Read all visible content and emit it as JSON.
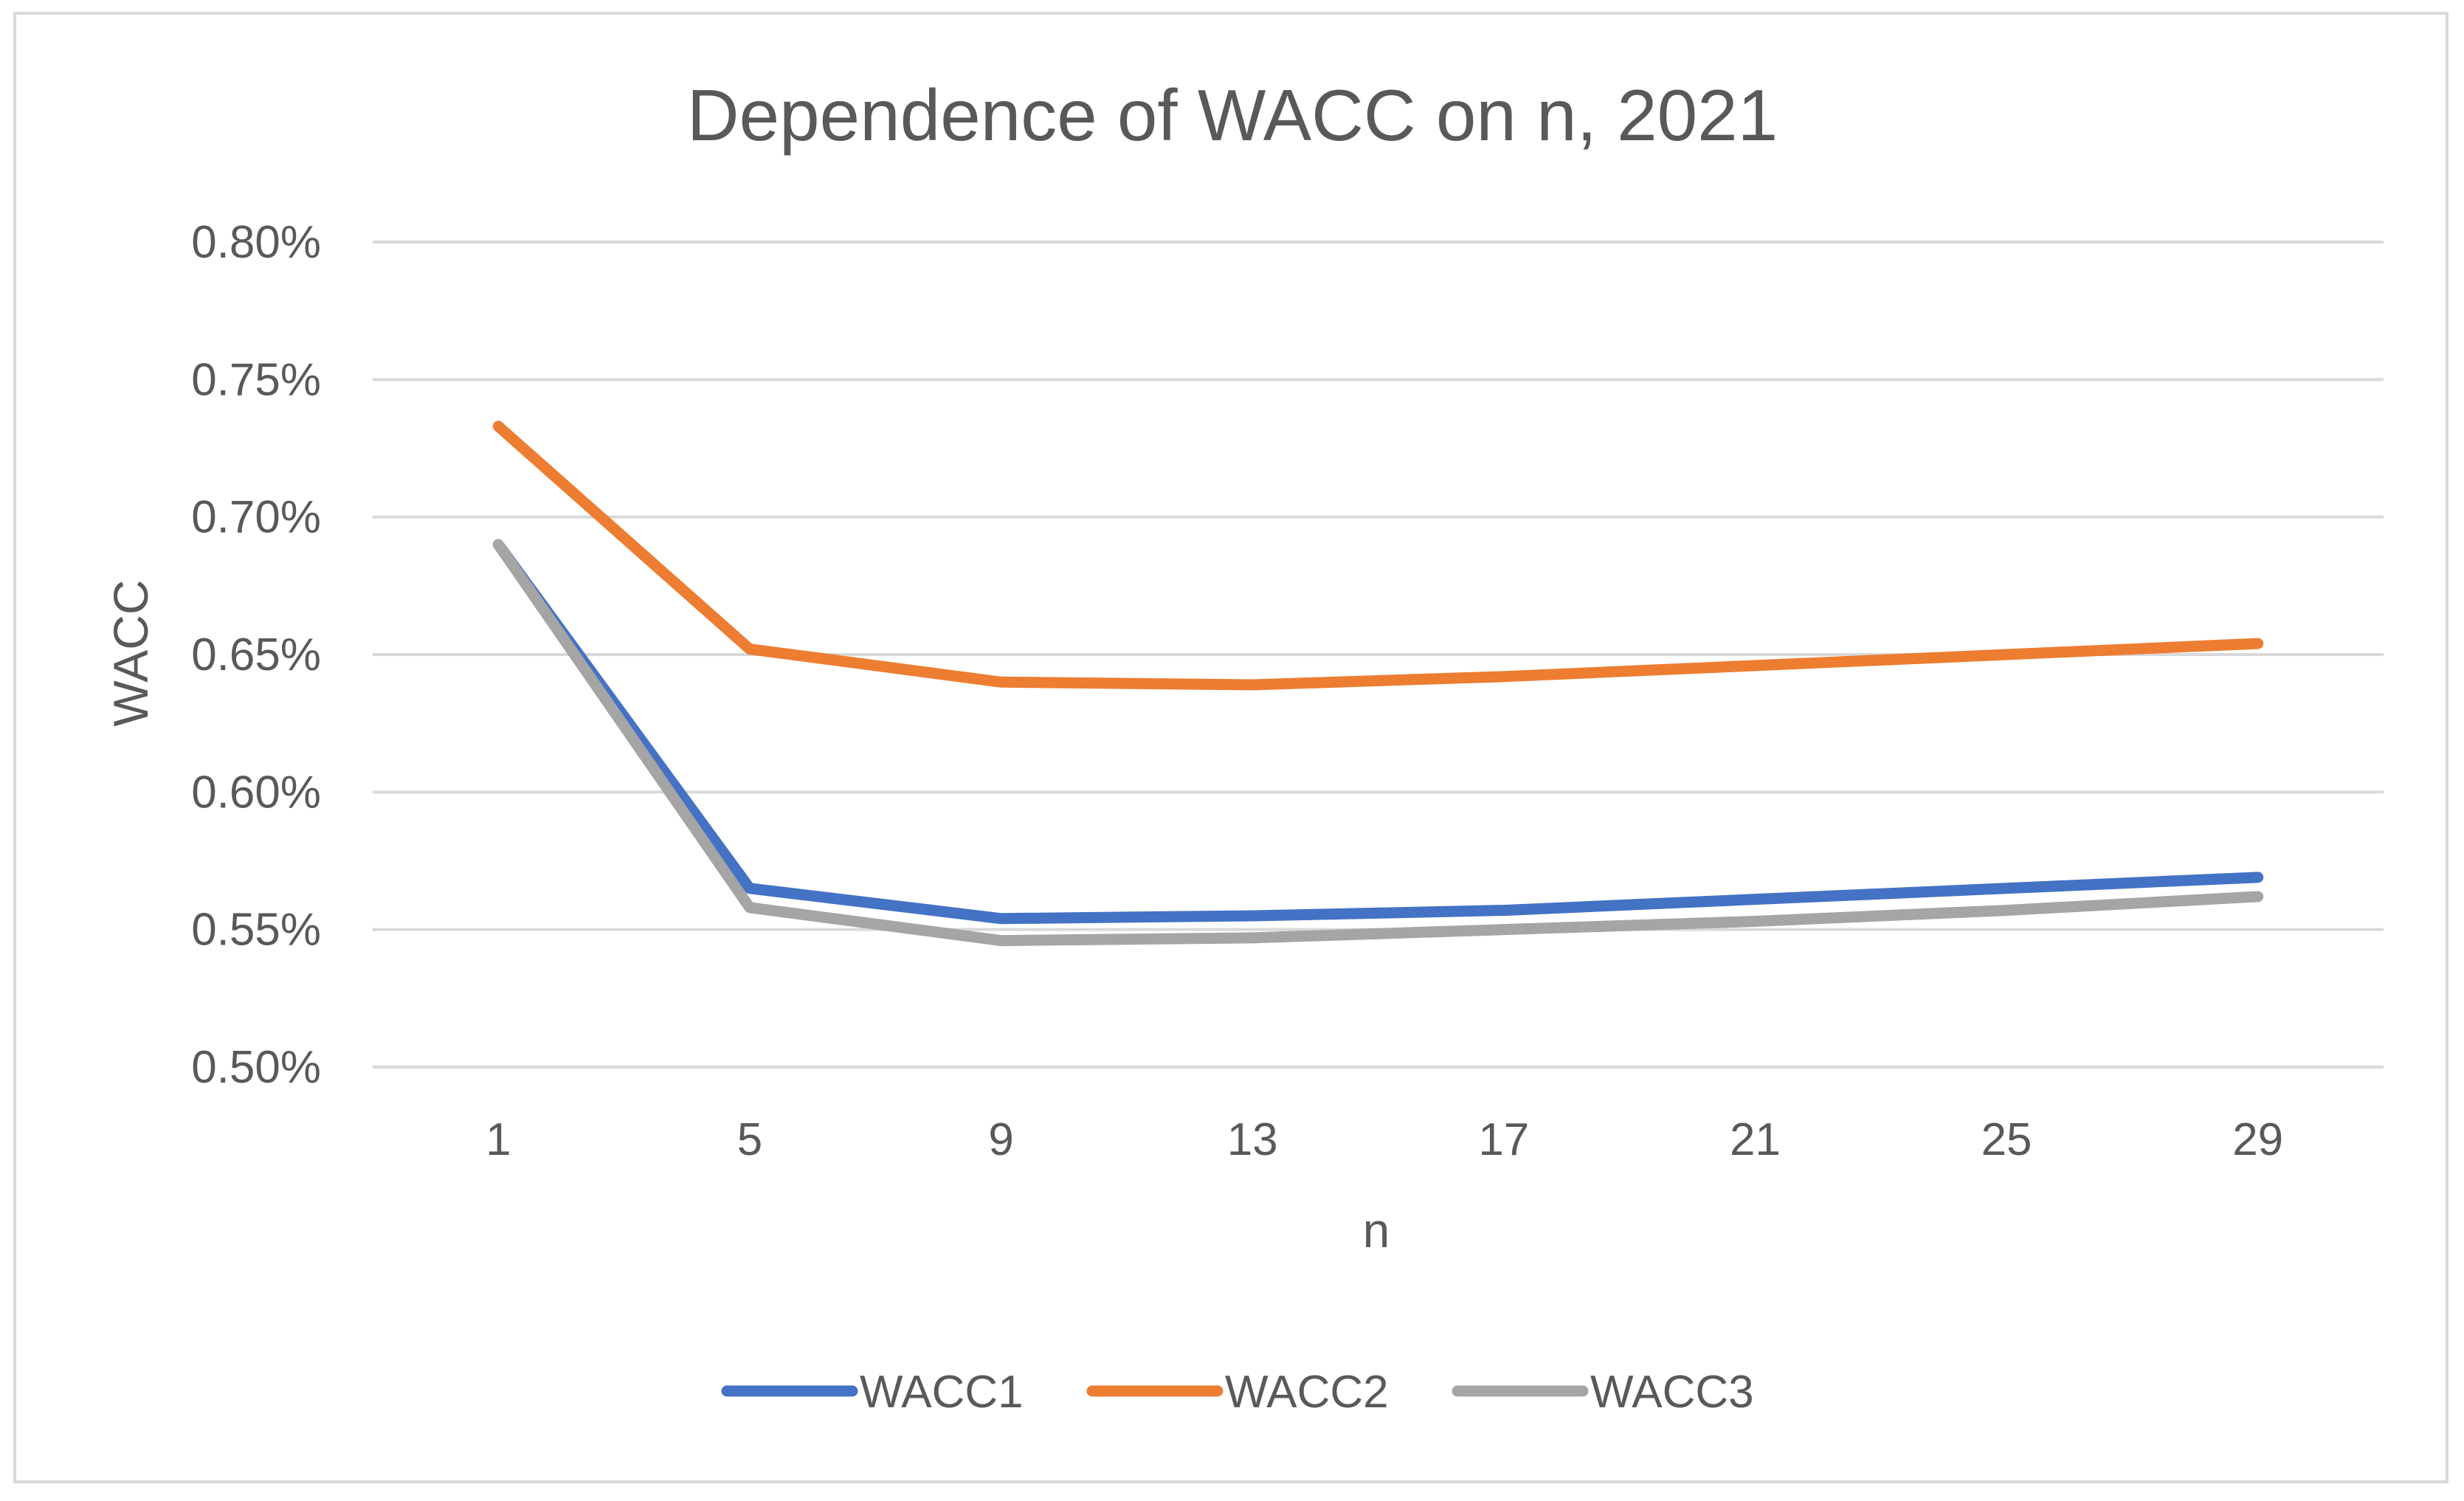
{
  "chart_data": {
    "type": "line",
    "title": "Dependence of WACC on n, 2021",
    "xlabel": "n",
    "ylabel": "WACC",
    "x": [
      1,
      5,
      9,
      13,
      17,
      21,
      25,
      29
    ],
    "x_tick_labels": [
      "1",
      "5",
      "9",
      "13",
      "17",
      "21",
      "25",
      "29"
    ],
    "ylim": [
      0.5,
      0.8
    ],
    "y_ticks": [
      0.5,
      0.55,
      0.6,
      0.65,
      0.7,
      0.75,
      0.8
    ],
    "y_tick_labels": [
      "0.50%",
      "0.55%",
      "0.60%",
      "0.65%",
      "0.70%",
      "0.75%",
      "0.80%"
    ],
    "grid": true,
    "legend_position": "bottom",
    "series": [
      {
        "name": "WACC1",
        "color": "#4472C4",
        "values": [
          0.69,
          0.565,
          0.554,
          0.555,
          0.557,
          0.561,
          0.565,
          0.569
        ]
      },
      {
        "name": "WACC2",
        "color": "#ED7D31",
        "values": [
          0.733,
          0.652,
          0.64,
          0.639,
          0.642,
          0.646,
          0.65,
          0.654
        ]
      },
      {
        "name": "WACC3",
        "color": "#A5A5A5",
        "values": [
          0.69,
          0.558,
          0.546,
          0.547,
          0.55,
          0.553,
          0.557,
          0.562
        ]
      }
    ]
  }
}
